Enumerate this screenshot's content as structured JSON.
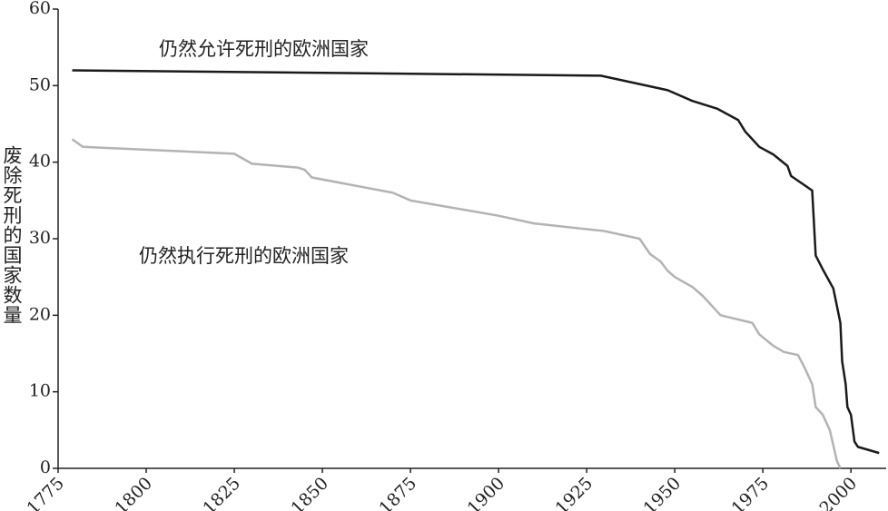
{
  "chart_data": {
    "type": "line",
    "y_label": "废除死刑的国家数量",
    "annotations": [
      "仍然允许死刑的欧洲国家",
      "仍然执行死刑的欧洲国家"
    ],
    "series": [
      {
        "name": "仍然允许死刑的欧洲国家",
        "color": "#1a1a1a",
        "x": [
          1779,
          1929,
          1940,
          1948,
          1955,
          1962,
          1968,
          1970,
          1972,
          1974,
          1978,
          1982,
          1983,
          1989,
          1990,
          1992,
          1995,
          1997,
          1997.5,
          1998.5,
          1999,
          2000,
          2001,
          2002,
          2008
        ],
        "values": [
          52,
          51.3,
          50.2,
          49.4,
          48,
          47,
          45.5,
          44,
          43,
          42,
          41,
          39.5,
          38.2,
          36.3,
          27.8,
          26,
          23.5,
          19,
          14,
          11,
          8,
          7,
          3.5,
          2.8,
          2
        ]
      },
      {
        "name": "仍然执行死刑的欧洲国家",
        "color": "#b3b3b3",
        "x": [
          1779,
          1782,
          1825,
          1830,
          1843,
          1845,
          1847,
          1870,
          1875,
          1900,
          1910,
          1930,
          1940,
          1943,
          1946,
          1948,
          1950,
          1955,
          1958,
          1963,
          1972,
          1974,
          1978,
          1981,
          1985,
          1987,
          1989,
          1990,
          1992,
          1994,
          1995,
          1996,
          1997
        ],
        "values": [
          43,
          42,
          41.1,
          39.8,
          39.3,
          39,
          38,
          36,
          35,
          33,
          32,
          31,
          30,
          28,
          27,
          25.8,
          25,
          23.7,
          22.5,
          20,
          19,
          17.5,
          16,
          15.2,
          14.8,
          13,
          11,
          8,
          7,
          5,
          3,
          1,
          0
        ]
      }
    ],
    "xlim": [
      1775,
      2010
    ],
    "xticks": [
      1775,
      1800,
      1825,
      1850,
      1875,
      1900,
      1925,
      1950,
      1975,
      2000
    ],
    "ylim": [
      0,
      60
    ],
    "yticks": [
      0,
      10,
      20,
      30,
      40,
      50,
      60
    ],
    "grid": false
  }
}
